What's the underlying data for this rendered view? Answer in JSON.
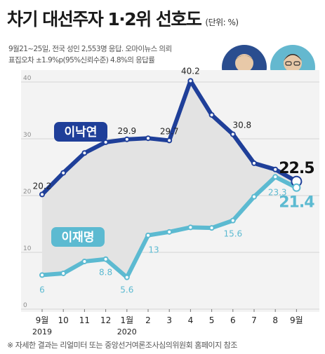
{
  "header": {
    "title": "차기 대선주자 1·2위 선호도",
    "unit": "(단위: %)"
  },
  "notes": {
    "line1": "9월21~25일, 전국 성인 2,553명 응답. 오마이뉴스 의뢰",
    "line2": "표집오차 ±1.9%p(95%신뢰수준) 4.8%의 응답률"
  },
  "source": "※ 자세한 결과는 리얼미터 또는 중앙선거여론조사심의위원회 홈페이지 참조",
  "colors": {
    "series1": "#1f3f99",
    "series2": "#5cbad1",
    "fill": "#e3e3e3",
    "grid": "#d6d6d6"
  },
  "chart_data": {
    "type": "line",
    "ylim": [
      0,
      40
    ],
    "yticks": [
      "0",
      "10",
      "20",
      "30",
      "40"
    ],
    "categories": [
      "9월",
      "10",
      "11",
      "12",
      "1월",
      "2",
      "3",
      "4",
      "5",
      "6",
      "7",
      "8",
      "9월"
    ],
    "year_labels": [
      {
        "index": 0,
        "label": "2019"
      },
      {
        "index": 4,
        "label": "2020"
      }
    ],
    "series": [
      {
        "name": "이낙연",
        "values": [
          20.2,
          24,
          27.5,
          29.4,
          29.9,
          30.1,
          29.7,
          40.2,
          34.2,
          30.8,
          25.7,
          24.6,
          22.5
        ],
        "value_labels": [
          {
            "index": 0,
            "text": "20.2"
          },
          {
            "index": 4,
            "text": "29.9"
          },
          {
            "index": 6,
            "text": "29.7"
          },
          {
            "index": 7,
            "text": "40.2"
          },
          {
            "index": 9,
            "text": "30.8"
          },
          {
            "index": 12,
            "text": "22.5"
          }
        ]
      },
      {
        "name": "이재명",
        "values": [
          6,
          6.3,
          8.4,
          8.8,
          5.6,
          13,
          13.6,
          14.4,
          14.3,
          15.6,
          19.8,
          23.3,
          21.4
        ],
        "value_labels": [
          {
            "index": 0,
            "text": "6"
          },
          {
            "index": 3,
            "text": "8.8"
          },
          {
            "index": 4,
            "text": "5.6"
          },
          {
            "index": 5,
            "text": "13"
          },
          {
            "index": 9,
            "text": "15.6"
          },
          {
            "index": 11,
            "text": "23.3"
          },
          {
            "index": 12,
            "text": "21.4"
          }
        ]
      }
    ]
  }
}
